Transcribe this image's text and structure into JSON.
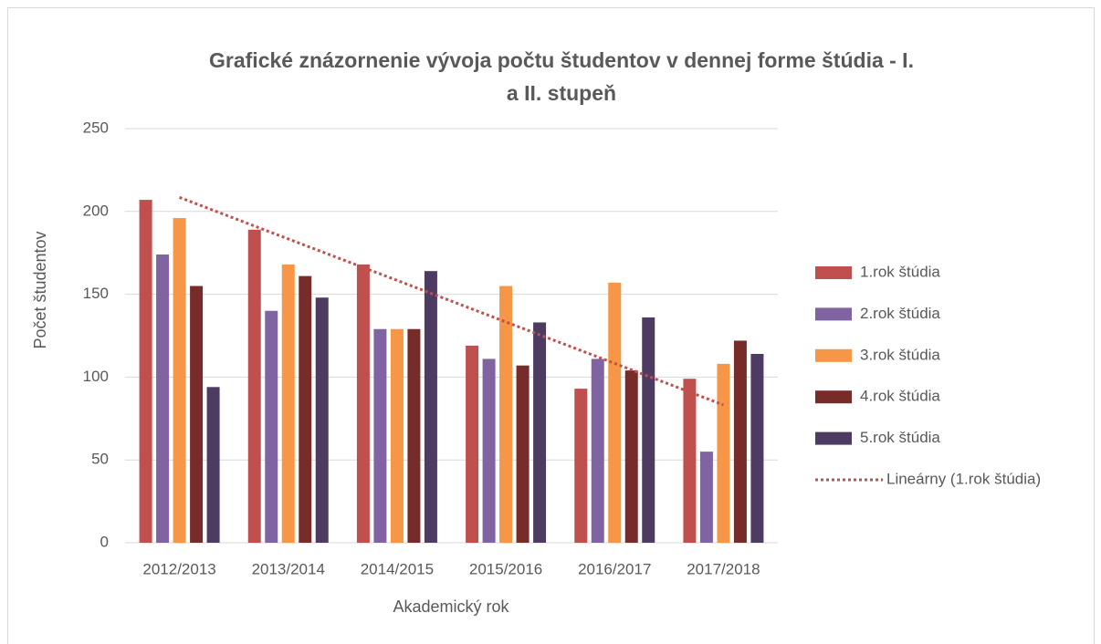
{
  "chart_data": {
    "type": "bar",
    "title": [
      "Grafické znázornenie vývoja počtu študentov v dennej forme štúdia - I.",
      "a II. stupeň"
    ],
    "xlabel": "Akademický rok",
    "ylabel": "Počet študentov",
    "categories": [
      "2012/2013",
      "2013/2014",
      "2014/2015",
      "2015/2016",
      "2016/2017",
      "2017/2018"
    ],
    "series": [
      {
        "name": "1.rok štúdia",
        "color": "#c0504d",
        "values": [
          207,
          189,
          168,
          119,
          93,
          99
        ]
      },
      {
        "name": "2.rok štúdia",
        "color": "#8064a2",
        "values": [
          174,
          140,
          129,
          111,
          111,
          55
        ]
      },
      {
        "name": "3.rok štúdia",
        "color": "#f79646",
        "values": [
          196,
          168,
          129,
          155,
          157,
          108
        ]
      },
      {
        "name": "4.rok štúdia",
        "color": "#772c2a",
        "values": [
          155,
          161,
          129,
          107,
          104,
          122
        ]
      },
      {
        "name": "5.rok štúdia",
        "color": "#4d3b62",
        "values": [
          94,
          148,
          164,
          133,
          136,
          114
        ]
      }
    ],
    "trendline": {
      "name": "Lineárny (1.rok štúdia)",
      "color": "#c0504d",
      "values": [
        208.5,
        183.4,
        158.4,
        133.3,
        108.3,
        83.2
      ]
    },
    "ylim": [
      0,
      250
    ],
    "yticks": [
      0,
      50,
      100,
      150,
      200,
      250
    ],
    "grid": true,
    "legend": "right"
  }
}
